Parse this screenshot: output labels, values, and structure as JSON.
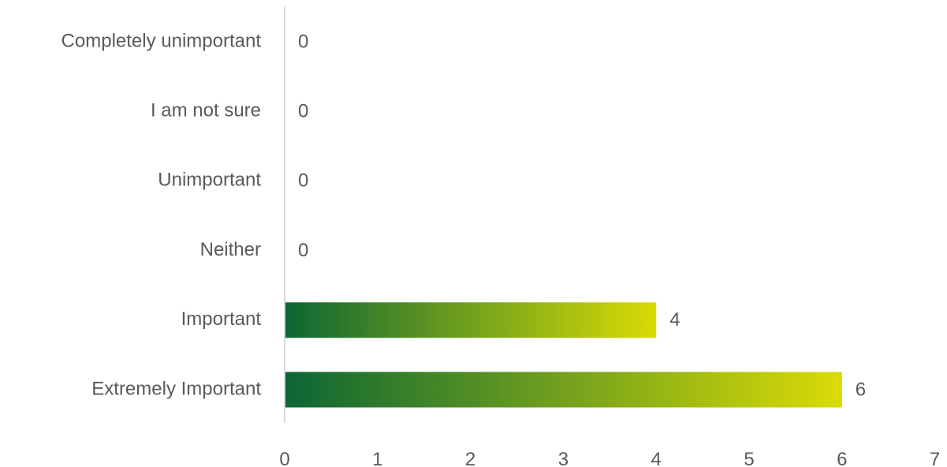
{
  "chart_data": {
    "type": "bar",
    "orientation": "horizontal",
    "title": "",
    "xlabel": "",
    "ylabel": "",
    "categories": [
      "Completely unimportant",
      "I am not sure",
      "Unimportant",
      "Neither",
      "Important",
      "Extremely Important"
    ],
    "values": [
      0,
      0,
      0,
      0,
      4,
      6
    ],
    "data_labels": [
      "0",
      "0",
      "0",
      "0",
      "4",
      "6"
    ],
    "xlim": [
      0,
      7
    ],
    "x_ticks": [
      "0",
      "1",
      "2",
      "3",
      "4",
      "5",
      "6",
      "7"
    ],
    "grid": false,
    "legend": "none",
    "bar_gradient": [
      "#0b6634",
      "#dbdb06"
    ],
    "axis_color": "#d9d9d9",
    "text_color": "#595959"
  }
}
